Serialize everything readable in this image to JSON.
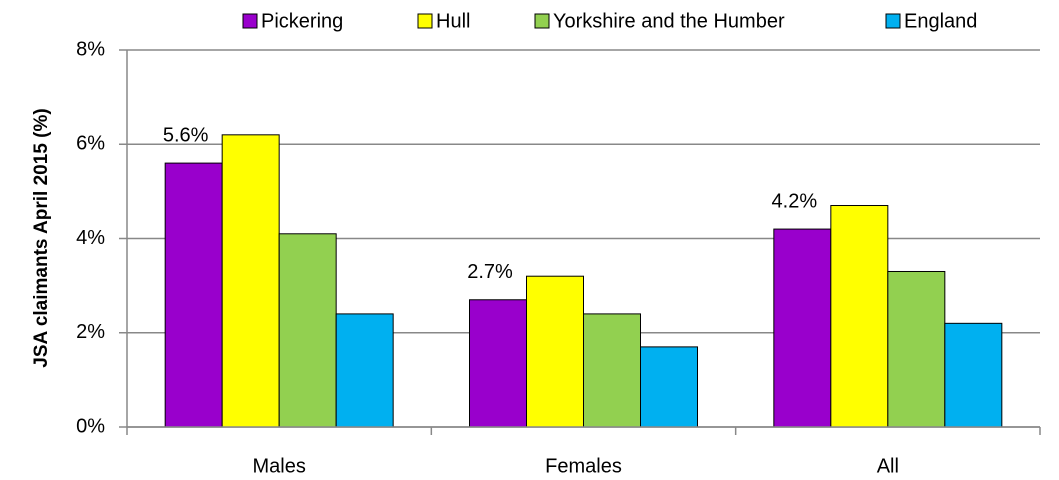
{
  "chart_data": {
    "type": "bar",
    "ylabel": "JSA claimants  April 2015 (%)",
    "categories": [
      "Males",
      "Females",
      "All"
    ],
    "series": [
      {
        "name": "Pickering",
        "color": "#9900cc",
        "values": [
          5.6,
          2.7,
          4.2
        ],
        "value_labels": [
          "5.6%",
          "2.7%",
          "4.2%"
        ]
      },
      {
        "name": "Hull",
        "color": "#ffff00",
        "values": [
          6.2,
          3.2,
          4.7
        ]
      },
      {
        "name": "Yorkshire and the Humber",
        "color": "#92d050",
        "values": [
          4.1,
          2.4,
          3.3
        ]
      },
      {
        "name": "England",
        "color": "#00b0f0",
        "values": [
          2.4,
          1.7,
          2.2
        ]
      }
    ],
    "ylim": [
      0,
      8
    ],
    "yticks": [
      {
        "value": 0,
        "label": "0%"
      },
      {
        "value": 2,
        "label": "2%"
      },
      {
        "value": 4,
        "label": "4%"
      },
      {
        "value": 6,
        "label": "6%"
      },
      {
        "value": 8,
        "label": "8%"
      }
    ],
    "grid": true,
    "legend": "top"
  }
}
